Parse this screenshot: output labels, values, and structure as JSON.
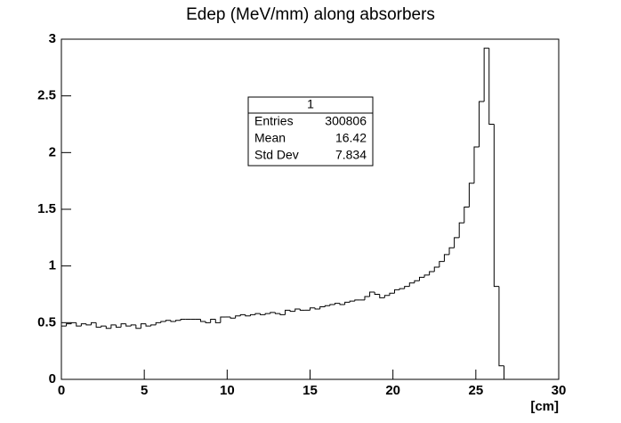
{
  "chart_data": {
    "type": "histogram",
    "title": "Edep (MeV/mm) along absorbers",
    "x_label": "[cm]",
    "bins": [
      0,
      0.3,
      0.6,
      0.9,
      1.2,
      1.5,
      1.8,
      2.1,
      2.4,
      2.7,
      3,
      3.3,
      3.6,
      3.9,
      4.2,
      4.5,
      4.8,
      5.1,
      5.4,
      5.7,
      6,
      6.3,
      6.6,
      6.9,
      7.2,
      7.5,
      7.8,
      8.1,
      8.4,
      8.7,
      9,
      9.3,
      9.6,
      9.9,
      10.2,
      10.5,
      10.8,
      11.1,
      11.4,
      11.7,
      12,
      12.3,
      12.6,
      12.9,
      13.2,
      13.5,
      13.8,
      14.1,
      14.4,
      14.7,
      15,
      15.3,
      15.6,
      15.9,
      16.2,
      16.5,
      16.8,
      17.1,
      17.4,
      17.7,
      18,
      18.3,
      18.6,
      18.9,
      19.2,
      19.5,
      19.8,
      20.1,
      20.4,
      20.7,
      21,
      21.3,
      21.6,
      21.9,
      22.2,
      22.5,
      22.8,
      23.1,
      23.4,
      23.7,
      24,
      24.3,
      24.6,
      24.9,
      25.2,
      25.5,
      25.8,
      26.1,
      26.4,
      26.7,
      27,
      27.3,
      27.6,
      27.9,
      28.2,
      28.5,
      28.8,
      29.1,
      29.4,
      29.7,
      30
    ],
    "values": [
      0.47,
      0.49,
      0.5,
      0.47,
      0.49,
      0.48,
      0.5,
      0.46,
      0.47,
      0.45,
      0.48,
      0.46,
      0.49,
      0.47,
      0.48,
      0.45,
      0.49,
      0.47,
      0.48,
      0.5,
      0.51,
      0.52,
      0.51,
      0.52,
      0.53,
      0.53,
      0.53,
      0.53,
      0.51,
      0.5,
      0.53,
      0.5,
      0.55,
      0.55,
      0.54,
      0.56,
      0.57,
      0.56,
      0.57,
      0.58,
      0.57,
      0.58,
      0.59,
      0.58,
      0.57,
      0.61,
      0.6,
      0.62,
      0.61,
      0.61,
      0.63,
      0.62,
      0.64,
      0.65,
      0.66,
      0.67,
      0.66,
      0.68,
      0.69,
      0.7,
      0.7,
      0.73,
      0.77,
      0.75,
      0.72,
      0.74,
      0.76,
      0.79,
      0.8,
      0.82,
      0.85,
      0.87,
      0.9,
      0.92,
      0.95,
      0.99,
      1.04,
      1.1,
      1.16,
      1.25,
      1.38,
      1.52,
      1.73,
      2.05,
      2.45,
      2.92,
      2.25,
      0.82,
      0.12,
      0,
      0,
      0,
      0,
      0,
      0,
      0,
      0,
      0,
      0,
      0
    ],
    "color": "#000000",
    "xlim": [
      0,
      30
    ],
    "xticks": [
      0,
      5,
      10,
      15,
      20,
      25,
      30
    ],
    "ylim": [
      0,
      3
    ],
    "yticks": [
      0,
      0.5,
      1,
      1.5,
      2,
      2.5,
      3
    ],
    "stats": {
      "title": "1",
      "rows": [
        {
          "label": "Entries",
          "value": 300806
        },
        {
          "label": "Mean",
          "value": 16.42
        },
        {
          "label": "Std Dev",
          "value": 7.834
        }
      ]
    }
  }
}
